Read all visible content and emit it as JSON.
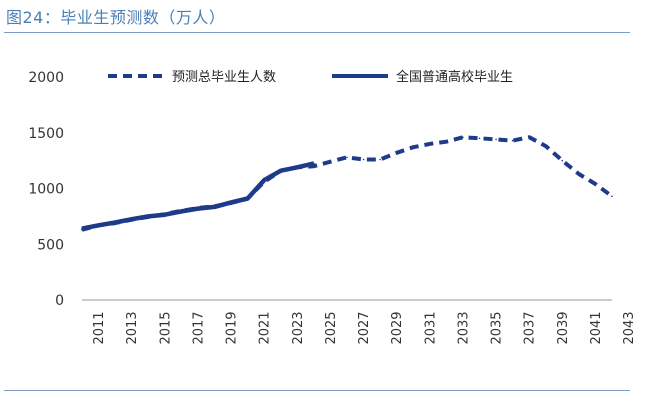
{
  "figure": {
    "title": "图24：毕业生预测数（万人）"
  },
  "chart_data": {
    "type": "line",
    "title": "图24：毕业生预测数（万人）",
    "xlabel": "",
    "ylabel": "",
    "ylim": [
      0,
      2000
    ],
    "yticks": [
      0,
      500,
      1000,
      1500,
      2000
    ],
    "xlim": [
      2011,
      2043
    ],
    "xticks": [
      "2011",
      "2013",
      "2015",
      "2017",
      "2019",
      "2021",
      "2023",
      "2025",
      "2027",
      "2029",
      "2031",
      "2033",
      "2035",
      "2037",
      "2039",
      "2041",
      "2043"
    ],
    "grid": false,
    "legend_position": "top",
    "colors": {
      "series": "#1e3a8a",
      "axis": "#999999"
    },
    "series": [
      {
        "name": "预测总毕业生人数",
        "style": "dashed",
        "x": [
          2011,
          2012,
          2013,
          2014,
          2015,
          2016,
          2017,
          2018,
          2019,
          2020,
          2021,
          2022,
          2023,
          2024,
          2025,
          2026,
          2027,
          2028,
          2029,
          2030,
          2031,
          2032,
          2033,
          2034,
          2035,
          2036,
          2037,
          2038,
          2039,
          2040,
          2041,
          2042,
          2043
        ],
        "values": [
          630,
          670,
          690,
          720,
          745,
          770,
          800,
          825,
          840,
          870,
          910,
          1060,
          1160,
          1190,
          1200,
          1240,
          1280,
          1260,
          1260,
          1320,
          1370,
          1400,
          1420,
          1460,
          1450,
          1440,
          1430,
          1460,
          1380,
          1250,
          1130,
          1040,
          930
        ]
      },
      {
        "name": "全国普通高校毕业生",
        "style": "solid",
        "x": [
          2011,
          2012,
          2013,
          2014,
          2015,
          2016,
          2017,
          2018,
          2019,
          2020,
          2021,
          2022,
          2023,
          2024,
          2025
        ],
        "values": [
          640,
          670,
          695,
          725,
          750,
          765,
          795,
          820,
          835,
          875,
          910,
          1075,
          1160,
          1190,
          1225
        ]
      }
    ]
  }
}
